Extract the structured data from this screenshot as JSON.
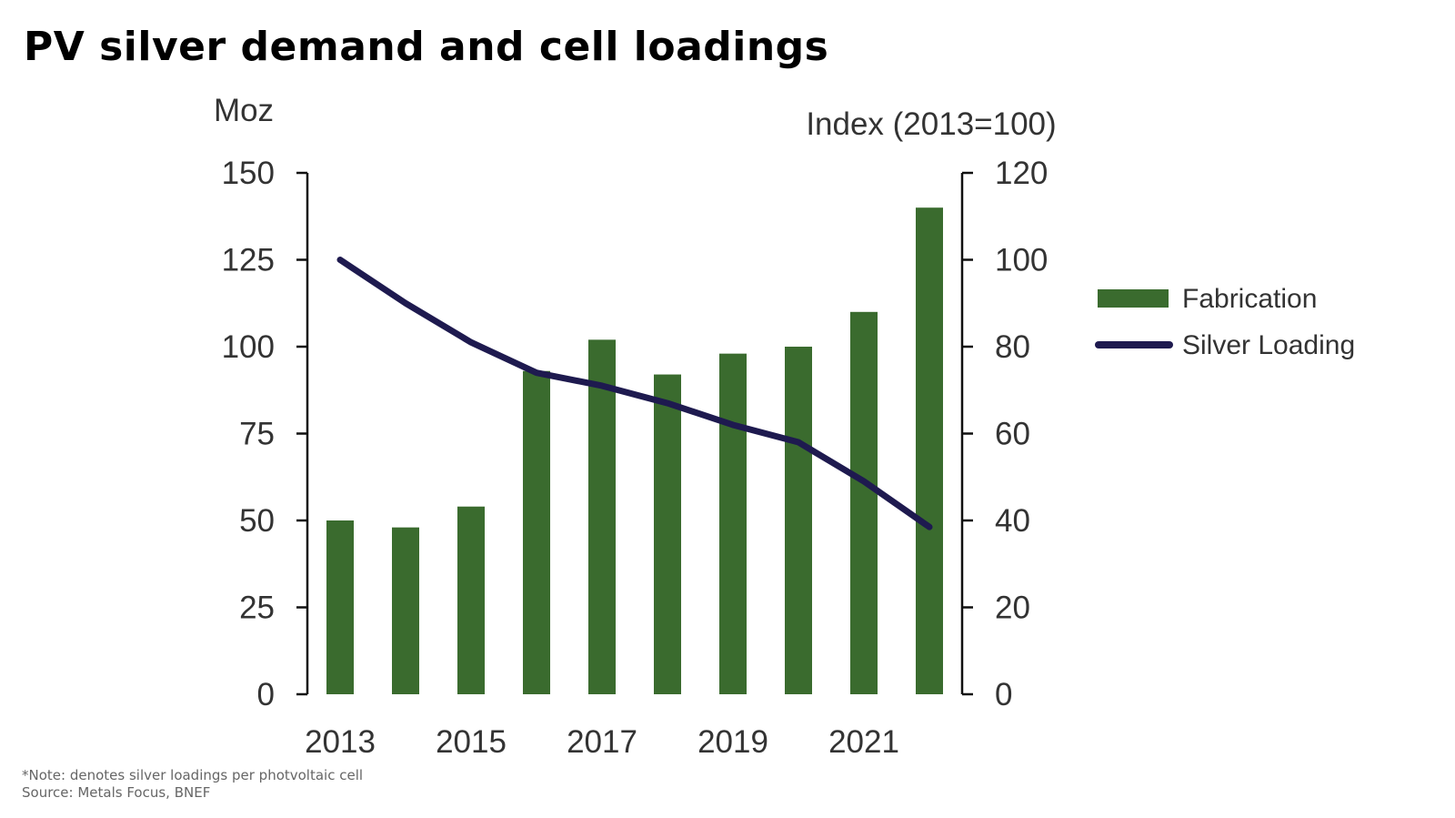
{
  "title": "PV silver demand and cell loadings",
  "note": "*Note: denotes silver loadings per photvoltaic cell",
  "source": "Source: Metals Focus, BNEF",
  "chart_data": {
    "type": "bar+line",
    "title": "PV silver demand and cell loadings",
    "categories": [
      "2013",
      "2014",
      "2015",
      "2016",
      "2017",
      "2018",
      "2019",
      "2020",
      "2021",
      "2022"
    ],
    "x_tick_labels": [
      "2013",
      "2015",
      "2017",
      "2019",
      "2021"
    ],
    "ylabel_left": "Moz",
    "ylabel_right": "Index (2013=100)",
    "ylim_left": [
      0,
      150
    ],
    "ylim_right": [
      0,
      120
    ],
    "yticks_left": [
      0,
      25,
      50,
      75,
      100,
      125,
      150
    ],
    "yticks_right": [
      0,
      20,
      40,
      60,
      80,
      100,
      120
    ],
    "grid": false,
    "legend_placement": "right",
    "series": [
      {
        "name": "Fabrication",
        "type": "bar",
        "axis": "left",
        "color": "#3a6b2e",
        "values": [
          50,
          48,
          54,
          93,
          102,
          92,
          98,
          100,
          110,
          140
        ]
      },
      {
        "name": "Silver Loading",
        "type": "line",
        "axis": "right",
        "color": "#1e1a4f",
        "values": [
          100,
          90,
          81,
          74,
          71,
          67,
          62,
          58,
          49,
          38.5
        ]
      }
    ]
  }
}
